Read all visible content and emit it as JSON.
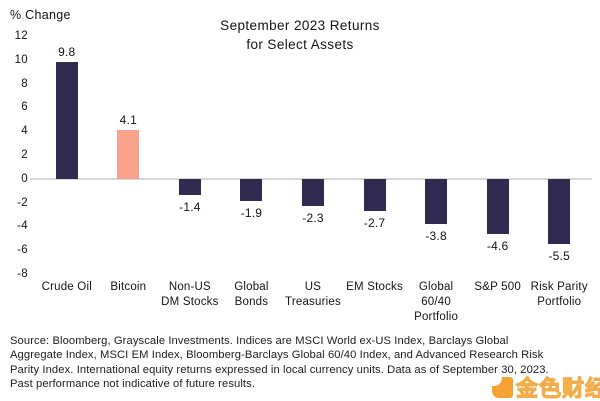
{
  "header": {
    "y_axis_label": "% Change",
    "title_lines": [
      "September 2023 Returns",
      "for Select Assets"
    ]
  },
  "chart_data": {
    "type": "bar",
    "title": "September 2023 Returns for Select Assets",
    "ylabel": "% Change",
    "xlabel": "",
    "categories": [
      "Crude Oil",
      "Bitcoin",
      "Non-US DM Stocks",
      "Global Bonds",
      "US Treasuries",
      "EM Stocks",
      "Global 60/40 Portfolio",
      "S&P 500",
      "Risk Parity Portfolio"
    ],
    "category_label_lines": [
      [
        "Crude Oil"
      ],
      [
        "Bitcoin"
      ],
      [
        "Non-US",
        "DM Stocks"
      ],
      [
        "Global",
        "Bonds"
      ],
      [
        "US",
        "Treasuries"
      ],
      [
        "EM Stocks"
      ],
      [
        "Global",
        "60/40",
        "Portfolio"
      ],
      [
        "S&P 500"
      ],
      [
        "Risk Parity",
        "Portfolio"
      ]
    ],
    "values": [
      9.8,
      4.1,
      -1.4,
      -1.9,
      -2.3,
      -2.7,
      -3.8,
      -4.6,
      -5.5
    ],
    "value_labels": [
      "9.8",
      "4.1",
      "-1.4",
      "-1.9",
      "-2.3",
      "-2.7",
      "-3.8",
      "-4.6",
      "-5.5"
    ],
    "ylim": [
      -8,
      12
    ],
    "yticks": [
      12,
      10,
      8,
      6,
      4,
      2,
      0,
      -2,
      -4,
      -6,
      -8
    ],
    "grid": false,
    "legend": "none",
    "colors": {
      "bar_default": "#312b52",
      "bar_highlight": "#fba38d",
      "zero_line": "#d8d8d8"
    },
    "highlight_index": 1
  },
  "footer": {
    "lines": [
      "Source: Bloomberg, Grayscale Investments. Indices are MSCI World ex-US Index, Barclays Global",
      "Aggregate Index, MSCI EM Index, Bloomberg-Barclays Global 60/40 Index, and Advanced Research Risk",
      "Parity Index. International equity returns expressed in local currency units. Data as of September 30, 2023.",
      "Past performance not indicative of future results."
    ]
  },
  "watermark": {
    "logo": "jinse-finance-logo",
    "text": "金色财经",
    "color": "#f59b1e"
  }
}
